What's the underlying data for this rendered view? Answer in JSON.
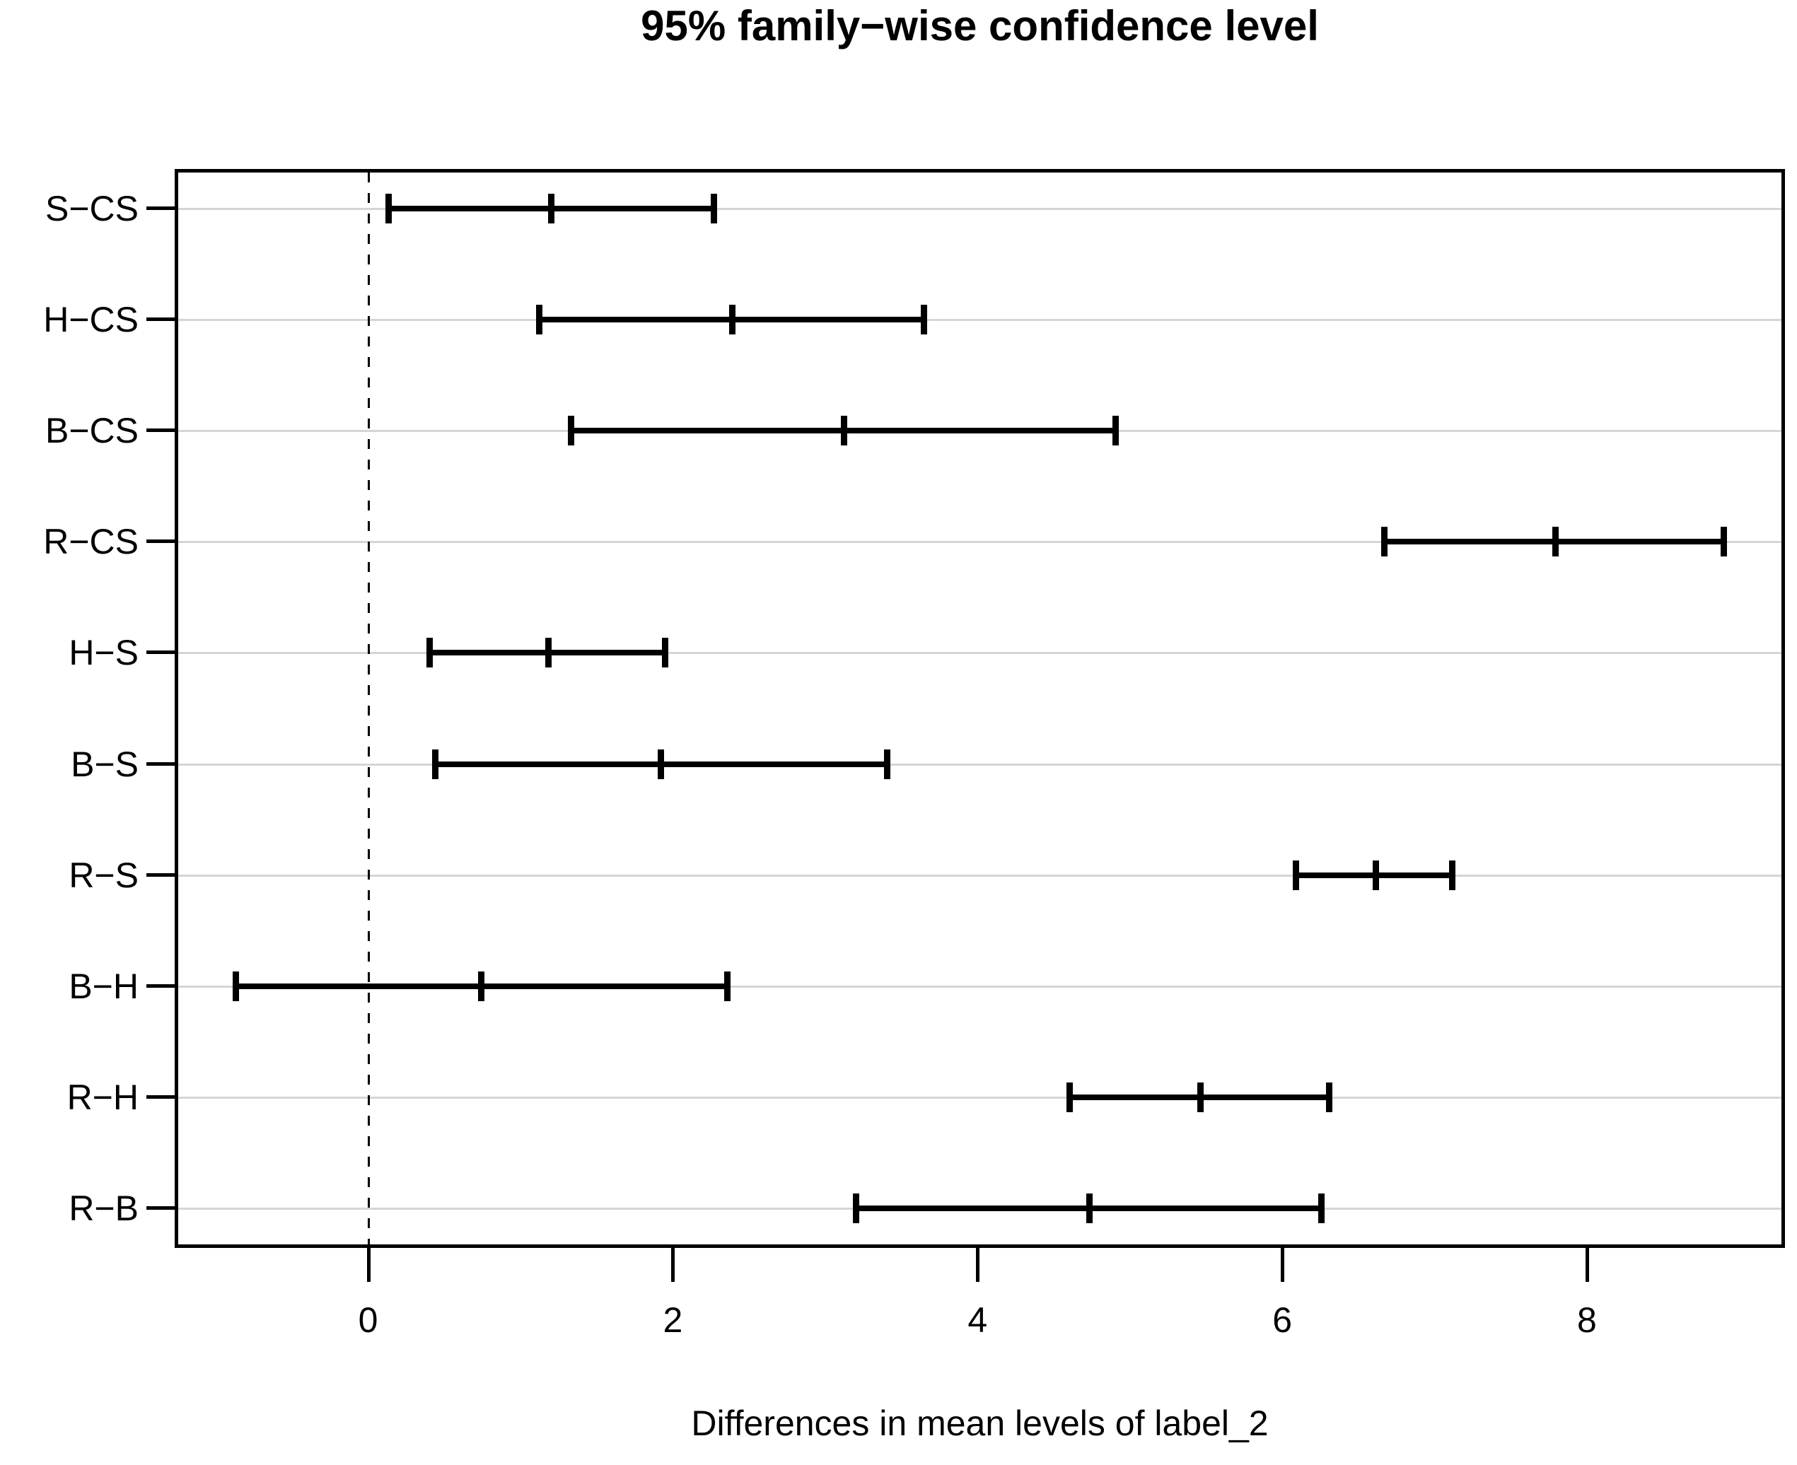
{
  "title": "95% family−wise confidence level",
  "chart_data": {
    "type": "errorbar",
    "title": "95% family−wise confidence level",
    "subtitle": "",
    "xlabel": "Differences in mean levels of label_2",
    "ylabel": "",
    "orientation": "horizontal",
    "x_ticks": [
      0,
      2,
      4,
      6,
      8
    ],
    "xlim": [
      -1.27,
      9.3
    ],
    "reference_line_x": 0,
    "reference_line_style": "dashed",
    "grid": "horizontal-light-gray-per-row",
    "legend": "none",
    "categories": [
      "S−CS",
      "H−CS",
      "B−CS",
      "R−CS",
      "H−S",
      "B−S",
      "R−S",
      "B−H",
      "R−H",
      "R−B"
    ],
    "comparisons": [
      {
        "label": "S−CS",
        "lower": 0.13,
        "diff": 1.2,
        "upper": 2.27
      },
      {
        "label": "H−CS",
        "lower": 1.12,
        "diff": 2.39,
        "upper": 3.65
      },
      {
        "label": "B−CS",
        "lower": 1.33,
        "diff": 3.12,
        "upper": 4.91
      },
      {
        "label": "R−CS",
        "lower": 6.67,
        "diff": 7.79,
        "upper": 8.9
      },
      {
        "label": "H−S",
        "lower": 0.4,
        "diff": 1.18,
        "upper": 1.95
      },
      {
        "label": "B−S",
        "lower": 0.44,
        "diff": 1.92,
        "upper": 3.41
      },
      {
        "label": "R−S",
        "lower": 6.09,
        "diff": 6.61,
        "upper": 7.12
      },
      {
        "label": "B−H",
        "lower": -0.87,
        "diff": 0.74,
        "upper": 2.36
      },
      {
        "label": "R−H",
        "lower": 4.6,
        "diff": 5.46,
        "upper": 6.31
      },
      {
        "label": "R−B",
        "lower": 3.2,
        "diff": 4.73,
        "upper": 6.26
      }
    ],
    "colors": {
      "interval": "#000000",
      "grid": "#d5d5d5",
      "reference_line": "#000000",
      "text": "#000000",
      "background": "#ffffff"
    }
  }
}
